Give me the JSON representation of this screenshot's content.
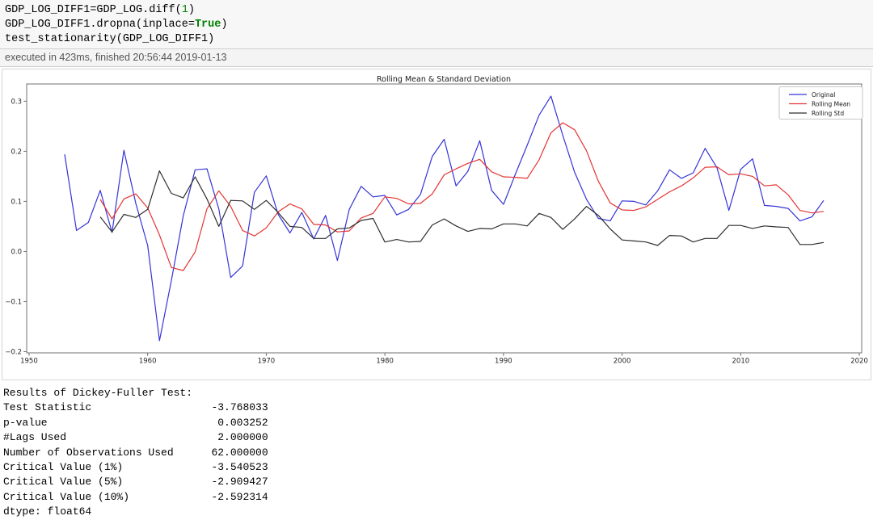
{
  "code_cell": {
    "lines": [
      {
        "segments": [
          {
            "text": "GDP_LOG_DIFF1=GDP_LOG.diff(",
            "type": "plain"
          },
          {
            "text": "1",
            "type": "number"
          },
          {
            "text": ")",
            "type": "plain"
          }
        ]
      },
      {
        "segments": [
          {
            "text": "GDP_LOG_DIFF1.dropna(inplace=",
            "type": "plain"
          },
          {
            "text": "True",
            "type": "keyword"
          },
          {
            "text": ")",
            "type": "plain"
          }
        ]
      },
      {
        "segments": [
          {
            "text": "test_stationarity(GDP_LOG_DIFF1)",
            "type": "plain"
          }
        ]
      }
    ]
  },
  "execution_status": {
    "text": "executed in 423ms, finished 20:56:44 2019-01-13"
  },
  "chart_data": {
    "type": "line",
    "title": "Rolling Mean & Standard Deviation",
    "xlabel": "",
    "ylabel": "",
    "grid": false,
    "legend_position": "upper right",
    "xlim": [
      1949.8,
      2020.2
    ],
    "ylim": [
      -0.2024,
      0.3344
    ],
    "xticks": [
      1950,
      1960,
      1970,
      1980,
      1990,
      2000,
      2010,
      2020
    ],
    "yticks": [
      {
        "value": -0.2,
        "label": "−0.2"
      },
      {
        "value": -0.1,
        "label": "−0.1"
      },
      {
        "value": 0.0,
        "label": "0.0"
      },
      {
        "value": 0.1,
        "label": "0.1"
      },
      {
        "value": 0.2,
        "label": "0.2"
      },
      {
        "value": 0.3,
        "label": "0.3"
      }
    ],
    "x": [
      1953,
      1954,
      1955,
      1956,
      1957,
      1958,
      1959,
      1960,
      1961,
      1962,
      1963,
      1964,
      1965,
      1966,
      1967,
      1968,
      1969,
      1970,
      1971,
      1972,
      1973,
      1974,
      1975,
      1976,
      1977,
      1978,
      1979,
      1980,
      1981,
      1982,
      1983,
      1984,
      1985,
      1986,
      1987,
      1988,
      1989,
      1990,
      1991,
      1992,
      1993,
      1994,
      1995,
      1996,
      1997,
      1998,
      1999,
      2000,
      2001,
      2002,
      2003,
      2004,
      2005,
      2006,
      2007,
      2008,
      2009,
      2010,
      2011,
      2012,
      2013,
      2014,
      2015,
      2016,
      2017
    ],
    "series": [
      {
        "name": "Original",
        "color": "#3434d8",
        "values": [
          0.194,
          0.042,
          0.058,
          0.122,
          0.038,
          0.202,
          0.096,
          0.012,
          -0.178,
          -0.058,
          0.071,
          0.163,
          0.165,
          0.085,
          -0.052,
          -0.029,
          0.118,
          0.151,
          0.074,
          0.037,
          0.078,
          0.025,
          0.072,
          -0.018,
          0.084,
          0.13,
          0.109,
          0.112,
          0.073,
          0.084,
          0.114,
          0.19,
          0.224,
          0.131,
          0.16,
          0.221,
          0.122,
          0.094,
          0.154,
          0.212,
          0.272,
          0.31,
          0.232,
          0.158,
          0.104,
          0.066,
          0.061,
          0.101,
          0.1,
          0.093,
          0.121,
          0.163,
          0.146,
          0.157,
          0.206,
          0.167,
          0.082,
          0.164,
          0.185,
          0.092,
          0.09,
          0.086,
          0.061,
          0.069,
          0.102
        ]
      },
      {
        "name": "Rolling Mean",
        "color": "#e53434",
        "values": [
          null,
          null,
          null,
          0.104,
          0.065,
          0.105,
          0.115,
          0.087,
          0.033,
          -0.032,
          -0.038,
          -0.001,
          0.085,
          0.121,
          0.09,
          0.042,
          0.031,
          0.047,
          0.079,
          0.095,
          0.085,
          0.054,
          0.053,
          0.039,
          0.041,
          0.067,
          0.076,
          0.109,
          0.106,
          0.095,
          0.096,
          0.115,
          0.153,
          0.165,
          0.176,
          0.184,
          0.159,
          0.149,
          0.148,
          0.146,
          0.183,
          0.237,
          0.257,
          0.243,
          0.201,
          0.14,
          0.097,
          0.083,
          0.082,
          0.089,
          0.104,
          0.119,
          0.131,
          0.147,
          0.168,
          0.169,
          0.153,
          0.155,
          0.15,
          0.131,
          0.133,
          0.113,
          0.082,
          0.077,
          0.08
        ]
      },
      {
        "name": "Rolling Std",
        "color": "#2f2f2f",
        "values": [
          null,
          null,
          null,
          0.069,
          0.039,
          0.074,
          0.068,
          0.084,
          0.161,
          0.116,
          0.107,
          0.149,
          0.105,
          0.05,
          0.102,
          0.101,
          0.084,
          0.102,
          0.078,
          0.05,
          0.048,
          0.026,
          0.026,
          0.045,
          0.047,
          0.062,
          0.066,
          0.019,
          0.024,
          0.019,
          0.02,
          0.053,
          0.065,
          0.051,
          0.04,
          0.046,
          0.045,
          0.055,
          0.055,
          0.051,
          0.076,
          0.068,
          0.044,
          0.065,
          0.09,
          0.072,
          0.045,
          0.023,
          0.021,
          0.019,
          0.012,
          0.032,
          0.031,
          0.019,
          0.026,
          0.026,
          0.052,
          0.052,
          0.046,
          0.051,
          0.049,
          0.048,
          0.014,
          0.014,
          0.018
        ]
      }
    ]
  },
  "results_text": {
    "header": "Results of Dickey-Fuller Test:",
    "rows": [
      {
        "label": "Test Statistic",
        "value": "-3.768033"
      },
      {
        "label": "p-value",
        "value": "0.003252"
      },
      {
        "label": "#Lags Used",
        "value": "2.000000"
      },
      {
        "label": "Number of Observations Used",
        "value": "62.000000"
      },
      {
        "label": "Critical Value (1%)",
        "value": "-3.540523"
      },
      {
        "label": "Critical Value (5%)",
        "value": "-2.909427"
      },
      {
        "label": "Critical Value (10%)",
        "value": "-2.592314"
      }
    ],
    "footer": "dtype: float64"
  },
  "colors": {
    "original": "#3434d8",
    "rolling_mean": "#e53434",
    "rolling_std": "#2f2f2f",
    "axis": "#707070",
    "tick_label": "#262626",
    "cell_bg": "#f7f7f7",
    "exec_bar_bg": "#f4f4f4"
  }
}
